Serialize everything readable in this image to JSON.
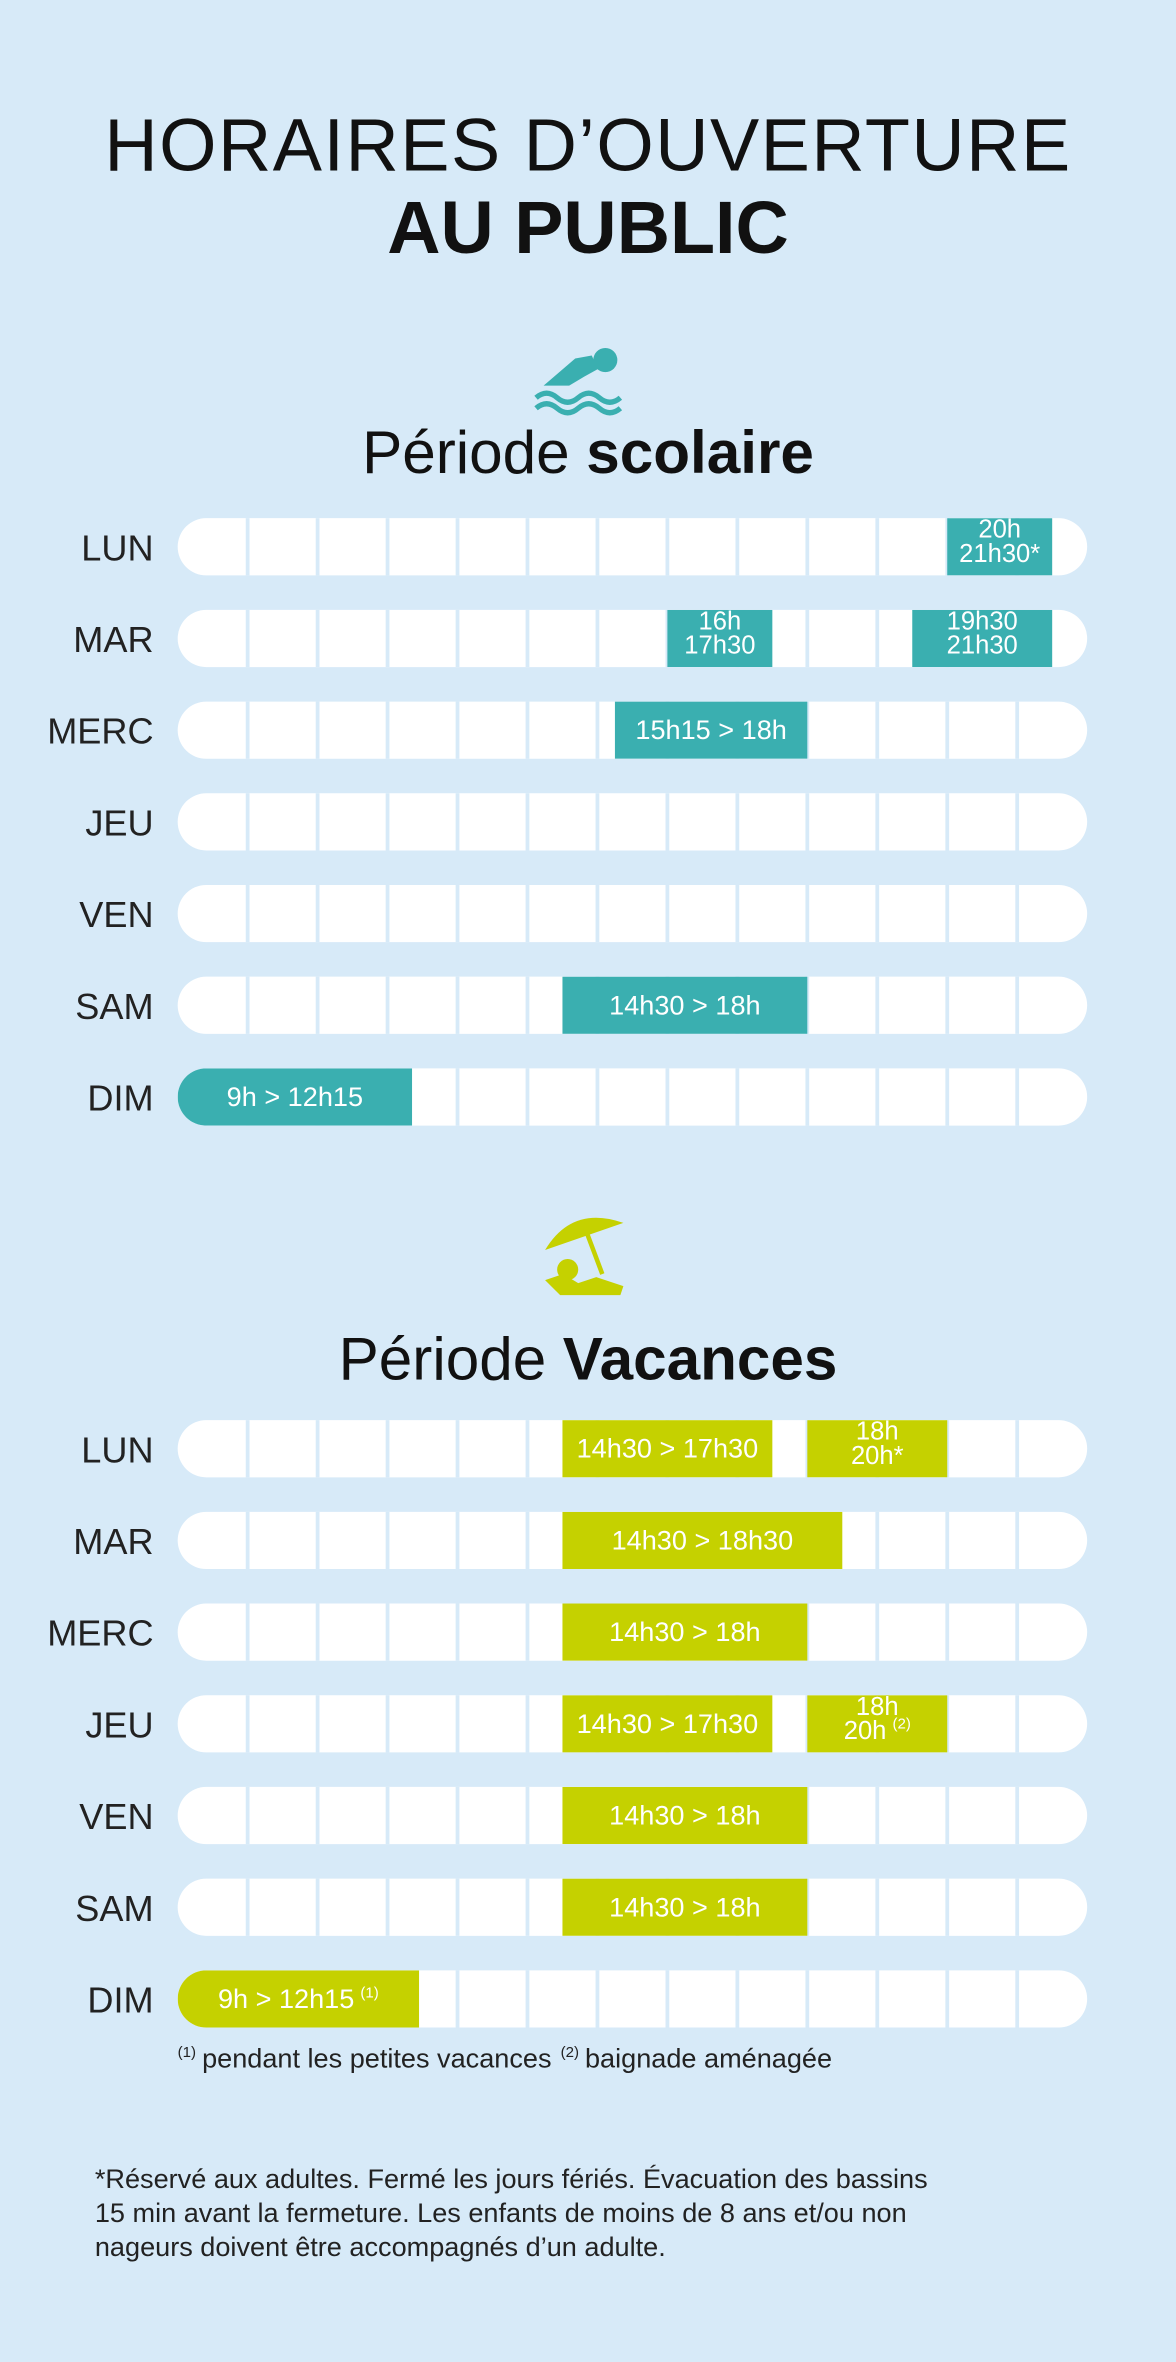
{
  "header": {
    "title_line1": "HORAIRES D’OUVERTURE",
    "title_line2": "AU PUBLIC"
  },
  "sections": [
    {
      "heading": "Période",
      "heading_bold": "scolaire",
      "rows": [
        {
          "day": "LUN",
          "blocks": [
            {
              "lines": [
                "20h",
                "21h30*"
              ]
            }
          ]
        },
        {
          "day": "MAR",
          "blocks": [
            {
              "lines": [
                "16h",
                "17h30"
              ]
            },
            {
              "lines": [
                "19h30",
                "21h30"
              ]
            }
          ]
        },
        {
          "day": "MERC",
          "blocks": [
            {
              "lines": [
                "15h15 > 18h"
              ]
            }
          ]
        },
        {
          "day": "JEU",
          "blocks": []
        },
        {
          "day": "VEN",
          "blocks": []
        },
        {
          "day": "SAM",
          "blocks": [
            {
              "lines": [
                "14h30 > 18h"
              ]
            }
          ]
        },
        {
          "day": "DIM",
          "blocks": [
            {
              "lines": [
                "9h > 12h15"
              ]
            }
          ]
        }
      ]
    },
    {
      "heading": "Période",
      "heading_bold": "Vacances",
      "rows": [
        {
          "day": "LUN",
          "blocks": [
            {
              "lines": [
                "14h30 > 17h30"
              ]
            },
            {
              "lines": [
                "18h",
                "20h*"
              ]
            }
          ]
        },
        {
          "day": "MAR",
          "blocks": [
            {
              "lines": [
                "14h30 > 18h30"
              ]
            }
          ]
        },
        {
          "day": "MERC",
          "blocks": [
            {
              "lines": [
                "14h30 > 18h"
              ]
            }
          ]
        },
        {
          "day": "JEU",
          "blocks": [
            {
              "lines": [
                "14h30 > 17h30"
              ]
            },
            {
              "lines": [
                "18h",
                "20h"
              ],
              "note": "(2)"
            }
          ]
        },
        {
          "day": "VEN",
          "blocks": [
            {
              "lines": [
                "14h30 > 18h"
              ]
            }
          ]
        },
        {
          "day": "SAM",
          "blocks": [
            {
              "lines": [
                "14h30 > 18h"
              ]
            }
          ]
        },
        {
          "day": "DIM",
          "blocks": [
            {
              "lines": [
                "9h > 12h15"
              ],
              "note": "(1)"
            }
          ]
        }
      ]
    }
  ],
  "footnotes": [
    {
      "mark": "(1)",
      "text": "pendant les petites vacances"
    },
    {
      "mark": "(2)",
      "text": "baignade aménagée"
    }
  ],
  "disclaimer": [
    "*Réservé aux adultes. Fermé les jours fériés. Évacuation des bassins",
    "15 min avant la fermeture. Les enfants de moins de 8 ans et/ou non",
    "nageurs doivent être accompagnés d’un adulte."
  ]
}
